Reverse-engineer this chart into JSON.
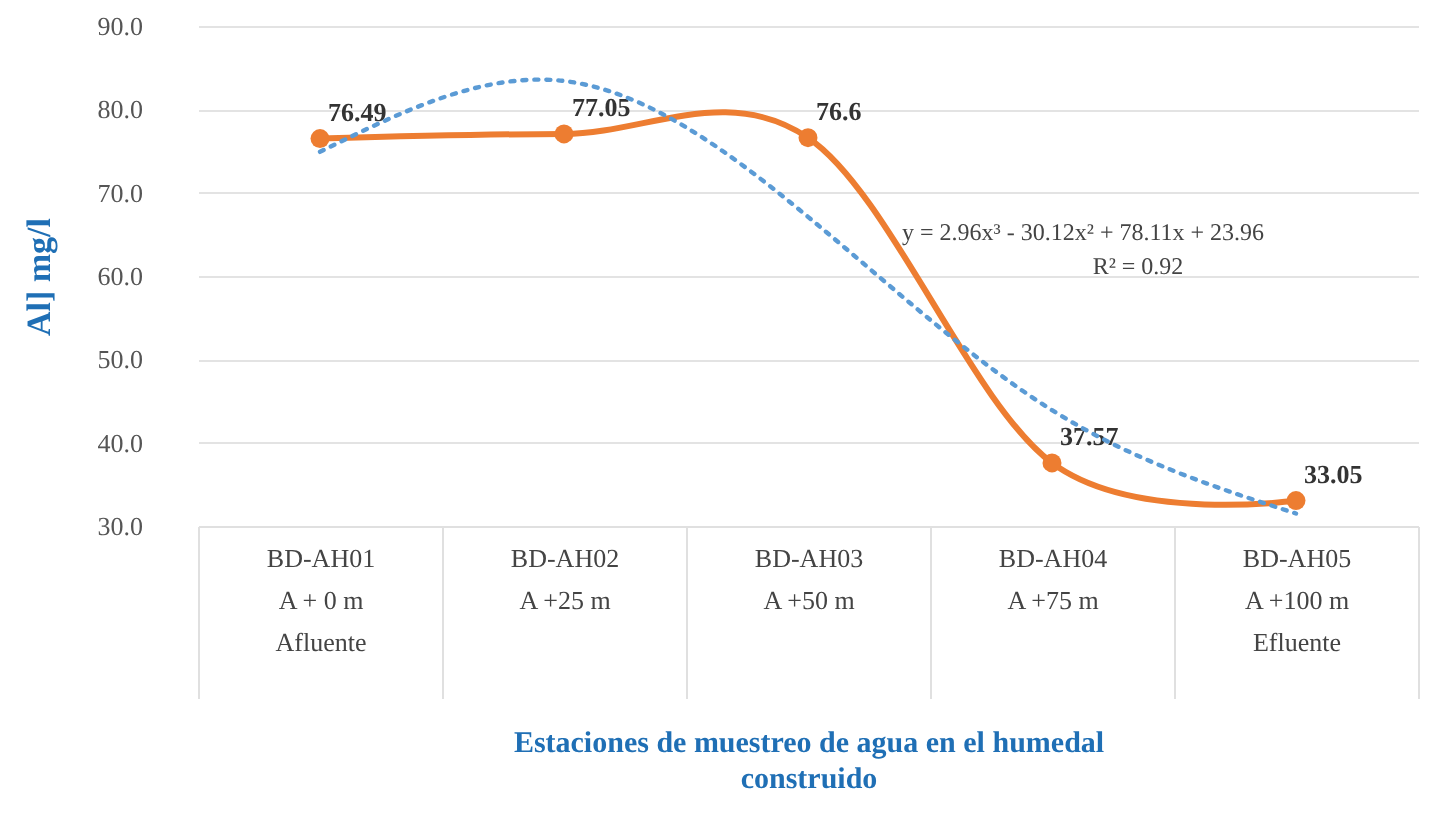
{
  "chart_data": {
    "type": "line",
    "xlabel": "Estaciones de muestreo de  agua en el humedal construido",
    "ylabel": "Al] mg/l",
    "categories": [
      "BD-AH01\nA + 0 m\nAfluente",
      "BD-AH02\nA +25 m",
      "BD-AH03\nA +50 m",
      "BD-AH04\nA +75 m",
      "BD-AH05\nA +100 m\nEfluente"
    ],
    "series": [
      {
        "color": "#ed7d31",
        "values": [
          76.49,
          77.05,
          76.6,
          37.57,
          33.05
        ],
        "value_labels": [
          "76.49",
          "77.05",
          "76.6",
          "37.57",
          "33.05"
        ],
        "marker": "circle",
        "line_style": "solid"
      },
      {
        "color": "#5b9bd5",
        "values": [
          74.9,
          83.4,
          67.1,
          43.9,
          31.5
        ],
        "marker": "none",
        "line_style": "dotted"
      }
    ],
    "ylim": [
      30,
      90
    ],
    "yticks": [
      {
        "value": 30,
        "label": "30.0"
      },
      {
        "value": 40,
        "label": "40.0"
      },
      {
        "value": 50,
        "label": "50.0"
      },
      {
        "value": 60,
        "label": "60.0"
      },
      {
        "value": 70,
        "label": "70.0"
      },
      {
        "value": 80,
        "label": "80.0"
      },
      {
        "value": 90,
        "label": "90.0"
      }
    ],
    "grid": "y",
    "annotations": [
      "y = 2.96x³ - 30.12x² + 78.11x + 23.96",
      "R² = 0.92"
    ]
  }
}
